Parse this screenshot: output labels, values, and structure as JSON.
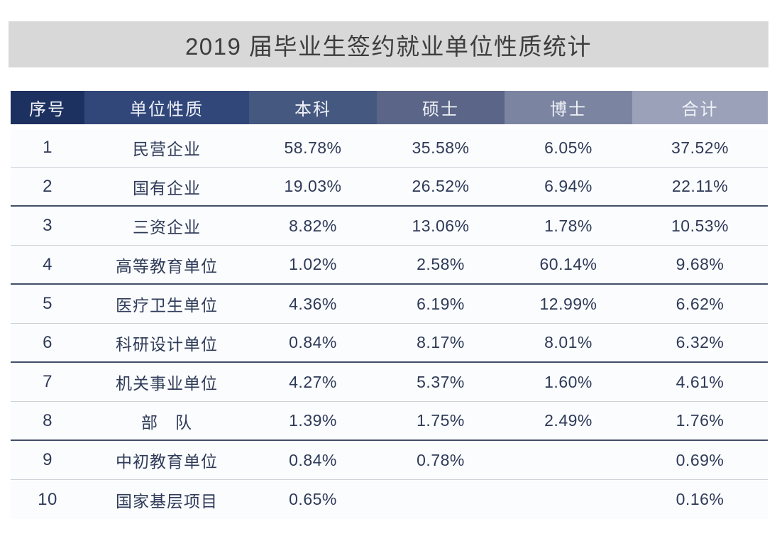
{
  "title": "2019 届毕业生签约就业单位性质统计",
  "colors": {
    "title_banner_bg": "#d8d8d8",
    "title_text": "#3d3d3d",
    "header_text": "#eef1f7",
    "cell_text": "#2e3a58",
    "divider_light": "#ccd0d8",
    "divider_dark": "#424e68",
    "header_cell_bgs": [
      "#1d3160",
      "#31477a",
      "#45587f",
      "#5a6587",
      "#7b84a0",
      "#9aa1b8"
    ]
  },
  "table": {
    "columns": [
      {
        "key": "no",
        "label": "序号",
        "bg": "#1d3160"
      },
      {
        "key": "unit_type",
        "label": "单位性质",
        "bg": "#31477a"
      },
      {
        "key": "bachelor",
        "label": "本科",
        "bg": "#45587f"
      },
      {
        "key": "master",
        "label": "硕士",
        "bg": "#5a6587"
      },
      {
        "key": "doctor",
        "label": "博士",
        "bg": "#7b84a0"
      },
      {
        "key": "total",
        "label": "合计",
        "bg": "#9aa1b8"
      }
    ],
    "rows": [
      {
        "no": "1",
        "unit_type": "民营企业",
        "bachelor": "58.78%",
        "master": "35.58%",
        "doctor": "6.05%",
        "total": "37.52%",
        "divider": "light"
      },
      {
        "no": "2",
        "unit_type": "国有企业",
        "bachelor": "19.03%",
        "master": "26.52%",
        "doctor": "6.94%",
        "total": "22.11%",
        "divider": "dark"
      },
      {
        "no": "3",
        "unit_type": "三资企业",
        "bachelor": "8.82%",
        "master": "13.06%",
        "doctor": "1.78%",
        "total": "10.53%",
        "divider": "light"
      },
      {
        "no": "4",
        "unit_type": "高等教育单位",
        "bachelor": "1.02%",
        "master": "2.58%",
        "doctor": "60.14%",
        "total": "9.68%",
        "divider": "dark"
      },
      {
        "no": "5",
        "unit_type": "医疗卫生单位",
        "bachelor": "4.36%",
        "master": "6.19%",
        "doctor": "12.99%",
        "total": "6.62%",
        "divider": "light"
      },
      {
        "no": "6",
        "unit_type": "科研设计单位",
        "bachelor": "0.84%",
        "master": "8.17%",
        "doctor": "8.01%",
        "total": "6.32%",
        "divider": "dark"
      },
      {
        "no": "7",
        "unit_type": "机关事业单位",
        "bachelor": "4.27%",
        "master": "5.37%",
        "doctor": "1.60%",
        "total": "4.61%",
        "divider": "light"
      },
      {
        "no": "8",
        "unit_type": "部　队",
        "bachelor": "1.39%",
        "master": "1.75%",
        "doctor": "2.49%",
        "total": "1.76%",
        "divider": "dark"
      },
      {
        "no": "9",
        "unit_type": "中初教育单位",
        "bachelor": "0.84%",
        "master": "0.78%",
        "doctor": "",
        "total": "0.69%",
        "divider": "light"
      },
      {
        "no": "10",
        "unit_type": "国家基层项目",
        "bachelor": "0.65%",
        "master": "",
        "doctor": "",
        "total": "0.16%",
        "divider": "none"
      }
    ]
  },
  "chart_data": {
    "type": "table",
    "title": "2019 届毕业生签约就业单位性质统计",
    "categories": [
      "民营企业",
      "国有企业",
      "三资企业",
      "高等教育单位",
      "医疗卫生单位",
      "科研设计单位",
      "机关事业单位",
      "部队",
      "中初教育单位",
      "国家基层项目"
    ],
    "series": [
      {
        "name": "本科",
        "values": [
          58.78,
          19.03,
          8.82,
          1.02,
          4.36,
          0.84,
          4.27,
          1.39,
          0.84,
          0.65
        ]
      },
      {
        "name": "硕士",
        "values": [
          35.58,
          26.52,
          13.06,
          2.58,
          6.19,
          8.17,
          5.37,
          1.75,
          0.78,
          null
        ]
      },
      {
        "name": "博士",
        "values": [
          6.05,
          6.94,
          1.78,
          60.14,
          12.99,
          8.01,
          1.6,
          2.49,
          null,
          null
        ]
      },
      {
        "name": "合计",
        "values": [
          37.52,
          22.11,
          10.53,
          9.68,
          6.62,
          6.32,
          4.61,
          1.76,
          0.69,
          0.16
        ]
      }
    ],
    "unit": "percent",
    "column_headers": [
      "序号",
      "单位性质",
      "本科",
      "硕士",
      "博士",
      "合计"
    ]
  }
}
